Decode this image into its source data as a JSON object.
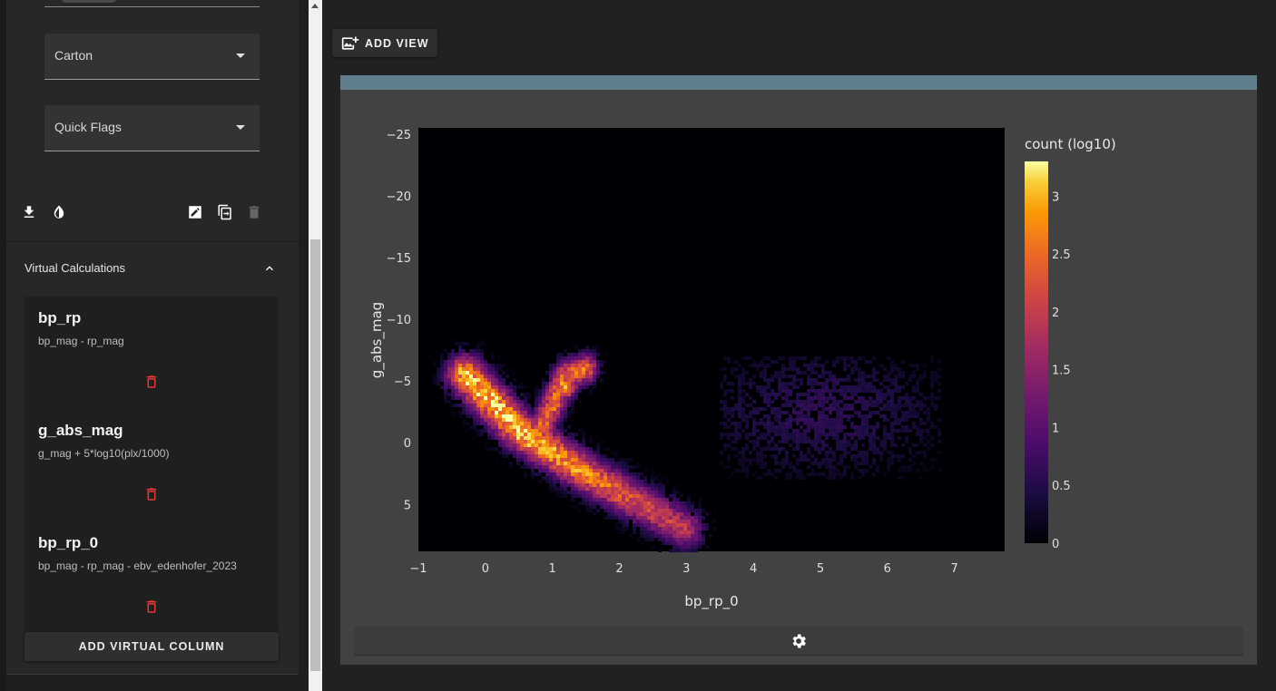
{
  "sidebar": {
    "filters": [
      {
        "label": "Carton"
      },
      {
        "label": "Quick Flags"
      }
    ],
    "toolbar_icons": [
      "download-icon",
      "contrast-icon",
      "edit-icon",
      "copy-icon",
      "delete-icon"
    ],
    "virtual_calculations": {
      "header": "Virtual Calculations",
      "items": [
        {
          "name": "bp_rp",
          "expression": "bp_mag - rp_mag"
        },
        {
          "name": "g_abs_mag",
          "expression": "g_mag + 5*log10(plx/1000)"
        },
        {
          "name": "bp_rp_0",
          "expression": "bp_mag - rp_mag - ebv_edenhofer_2023"
        }
      ],
      "add_button": "ADD VIRTUAL COLUMN"
    }
  },
  "main": {
    "add_view_label": "ADD VIEW",
    "colors": {
      "card_header": "#607d8b",
      "delete": "#e53935"
    }
  },
  "chart_data": {
    "type": "heatmap",
    "xlabel": "bp_rp_0",
    "ylabel": "g_abs_mag",
    "xlim": [
      -1,
      7.75
    ],
    "ylim": [
      8.8,
      -25.5
    ],
    "y_inverted": true,
    "x_ticks": [
      -1,
      0,
      1,
      2,
      3,
      4,
      5,
      6,
      7
    ],
    "y_ticks": [
      -25,
      -20,
      -15,
      -10,
      -5,
      0,
      5
    ],
    "colorbar": {
      "title": "count (log10)",
      "range": [
        0,
        3.3
      ],
      "ticks": [
        0,
        0.5,
        1,
        1.5,
        2,
        2.5,
        3
      ],
      "colorscale": "inferno"
    },
    "features": [
      {
        "name": "main sequence",
        "x": [
          -0.3,
          0.5,
          1.5,
          2.5,
          3.0
        ],
        "y": [
          -5.5,
          -1,
          2.5,
          5.5,
          7.0
        ],
        "peak_log10": 3.2
      },
      {
        "name": "red clump",
        "x": 1.2,
        "y": -4.5,
        "peak_log10": 3.0
      },
      {
        "name": "giant branch",
        "x": [
          0.8,
          1.0,
          1.2,
          1.5
        ],
        "y": [
          -1.0,
          -3.0,
          -5.5,
          -6.0
        ],
        "peak_log10": 2.6
      },
      {
        "name": "scattered cloud",
        "x": [
          3.5,
          6.8
        ],
        "y": [
          -7.0,
          3.0
        ],
        "peak_log10": 0.6
      }
    ]
  }
}
